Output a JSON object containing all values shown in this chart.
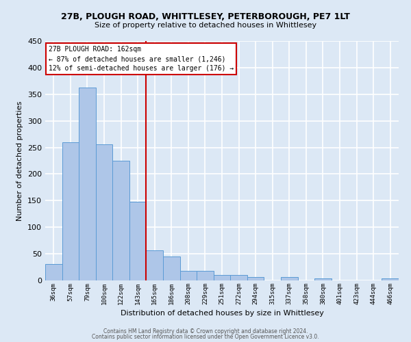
{
  "title1": "27B, PLOUGH ROAD, WHITTLESEY, PETERBOROUGH, PE7 1LT",
  "title2": "Size of property relative to detached houses in Whittlesey",
  "xlabel": "Distribution of detached houses by size in Whittlesey",
  "ylabel": "Number of detached properties",
  "categories": [
    "36sqm",
    "57sqm",
    "79sqm",
    "100sqm",
    "122sqm",
    "143sqm",
    "165sqm",
    "186sqm",
    "208sqm",
    "229sqm",
    "251sqm",
    "272sqm",
    "294sqm",
    "315sqm",
    "337sqm",
    "358sqm",
    "380sqm",
    "401sqm",
    "423sqm",
    "444sqm",
    "466sqm"
  ],
  "values": [
    31,
    260,
    362,
    256,
    225,
    148,
    56,
    45,
    18,
    18,
    10,
    10,
    7,
    0,
    6,
    0,
    4,
    0,
    0,
    0,
    4
  ],
  "bar_color": "#aec6e8",
  "bar_edge_color": "#5b9bd5",
  "ref_line_color": "#cc0000",
  "annotation_text1": "27B PLOUGH ROAD: 162sqm",
  "annotation_text2": "← 87% of detached houses are smaller (1,246)",
  "annotation_text3": "12% of semi-detached houses are larger (176) →",
  "annotation_box_color": "#ffffff",
  "annotation_box_edge": "#cc0000",
  "ylim": [
    0,
    450
  ],
  "footer1": "Contains HM Land Registry data © Crown copyright and database right 2024.",
  "footer2": "Contains public sector information licensed under the Open Government Licence v3.0.",
  "background_color": "#dce8f5",
  "grid_color": "#ffffff"
}
